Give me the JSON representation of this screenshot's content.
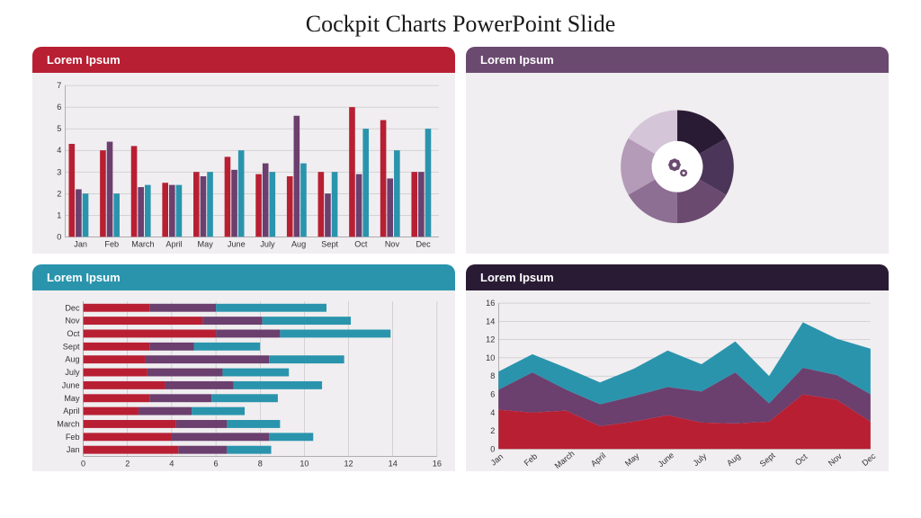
{
  "title": "Cockpit Charts PowerPoint Slide",
  "panels": {
    "bar": {
      "title": "Lorem Ipsum",
      "header_color": "#b81f33",
      "type": "bar",
      "categories": [
        "Jan",
        "Feb",
        "March",
        "April",
        "May",
        "June",
        "July",
        "Aug",
        "Sept",
        "Oct",
        "Nov",
        "Dec"
      ],
      "series": [
        {
          "color": "#b81f33",
          "values": [
            4.3,
            4.0,
            4.2,
            2.5,
            3.0,
            3.7,
            2.9,
            2.8,
            3.0,
            6.0,
            5.4,
            3.0
          ]
        },
        {
          "color": "#6b3f6e",
          "values": [
            2.2,
            4.4,
            2.3,
            2.4,
            2.8,
            3.1,
            3.4,
            5.6,
            2.0,
            2.9,
            2.7,
            3.0
          ]
        },
        {
          "color": "#2a94ad",
          "values": [
            2.0,
            2.0,
            2.4,
            2.4,
            3.0,
            4.0,
            3.0,
            3.4,
            3.0,
            5.0,
            4.0,
            5.0
          ]
        }
      ],
      "ylim": [
        0,
        7
      ],
      "ytick_step": 1,
      "background": "#f0eef0",
      "grid_color": "#aaaaaa"
    },
    "donut": {
      "title": "Lorem Ipsum",
      "header_color": "#6b4a70",
      "type": "donut",
      "slices": [
        {
          "color": "#2a1b35",
          "pct": 16.67
        },
        {
          "color": "#4b3559",
          "pct": 16.67
        },
        {
          "color": "#6b4a70",
          "pct": 16.67
        },
        {
          "color": "#8e6f94",
          "pct": 16.67
        },
        {
          "color": "#b49bb8",
          "pct": 16.67
        },
        {
          "color": "#d5c5d8",
          "pct": 16.67
        }
      ],
      "center_icon_color": "#6b4a70",
      "inner_bg": "#ffffff",
      "background": "#f0eef0"
    },
    "hbar": {
      "title": "Lorem Ipsum",
      "header_color": "#2a94ad",
      "type": "stacked-hbar",
      "categories": [
        "Dec",
        "Nov",
        "Oct",
        "Sept",
        "Aug",
        "July",
        "June",
        "May",
        "April",
        "March",
        "Feb",
        "Jan"
      ],
      "series": [
        {
          "color": "#b81f33",
          "values": [
            3.0,
            5.4,
            6.0,
            3.0,
            2.8,
            2.9,
            3.7,
            3.0,
            2.5,
            4.2,
            4.0,
            4.3
          ]
        },
        {
          "color": "#6b3f6e",
          "values": [
            3.0,
            2.7,
            2.9,
            2.0,
            5.6,
            3.4,
            3.1,
            2.8,
            2.4,
            2.3,
            4.4,
            2.2
          ]
        },
        {
          "color": "#2a94ad",
          "values": [
            5.0,
            4.0,
            5.0,
            3.0,
            3.4,
            3.0,
            4.0,
            3.0,
            2.4,
            2.4,
            2.0,
            2.0
          ]
        }
      ],
      "xlim": [
        0,
        16
      ],
      "xtick_step": 2,
      "background": "#f0eef0",
      "grid_color": "#aaaaaa"
    },
    "area": {
      "title": "Lorem Ipsum",
      "header_color": "#2a1b35",
      "type": "area",
      "categories": [
        "Jan",
        "Feb",
        "March",
        "April",
        "May",
        "June",
        "July",
        "Aug",
        "Sept",
        "Oct",
        "Nov",
        "Dec"
      ],
      "series": [
        {
          "color": "#b81f33",
          "values": [
            4.3,
            4.0,
            4.2,
            2.5,
            3.0,
            3.7,
            2.9,
            2.8,
            3.0,
            6.0,
            5.4,
            3.0
          ]
        },
        {
          "color": "#6b3f6e",
          "values": [
            2.2,
            4.4,
            2.3,
            2.4,
            2.8,
            3.1,
            3.4,
            5.6,
            2.0,
            2.9,
            2.7,
            3.0
          ]
        },
        {
          "color": "#2a94ad",
          "values": [
            2.0,
            2.0,
            2.4,
            2.4,
            3.0,
            4.0,
            3.0,
            3.4,
            3.0,
            5.0,
            4.0,
            5.0
          ]
        }
      ],
      "ylim": [
        0,
        16
      ],
      "ytick_step": 2,
      "background": "#f0eef0",
      "grid_color": "#aaaaaa"
    }
  }
}
